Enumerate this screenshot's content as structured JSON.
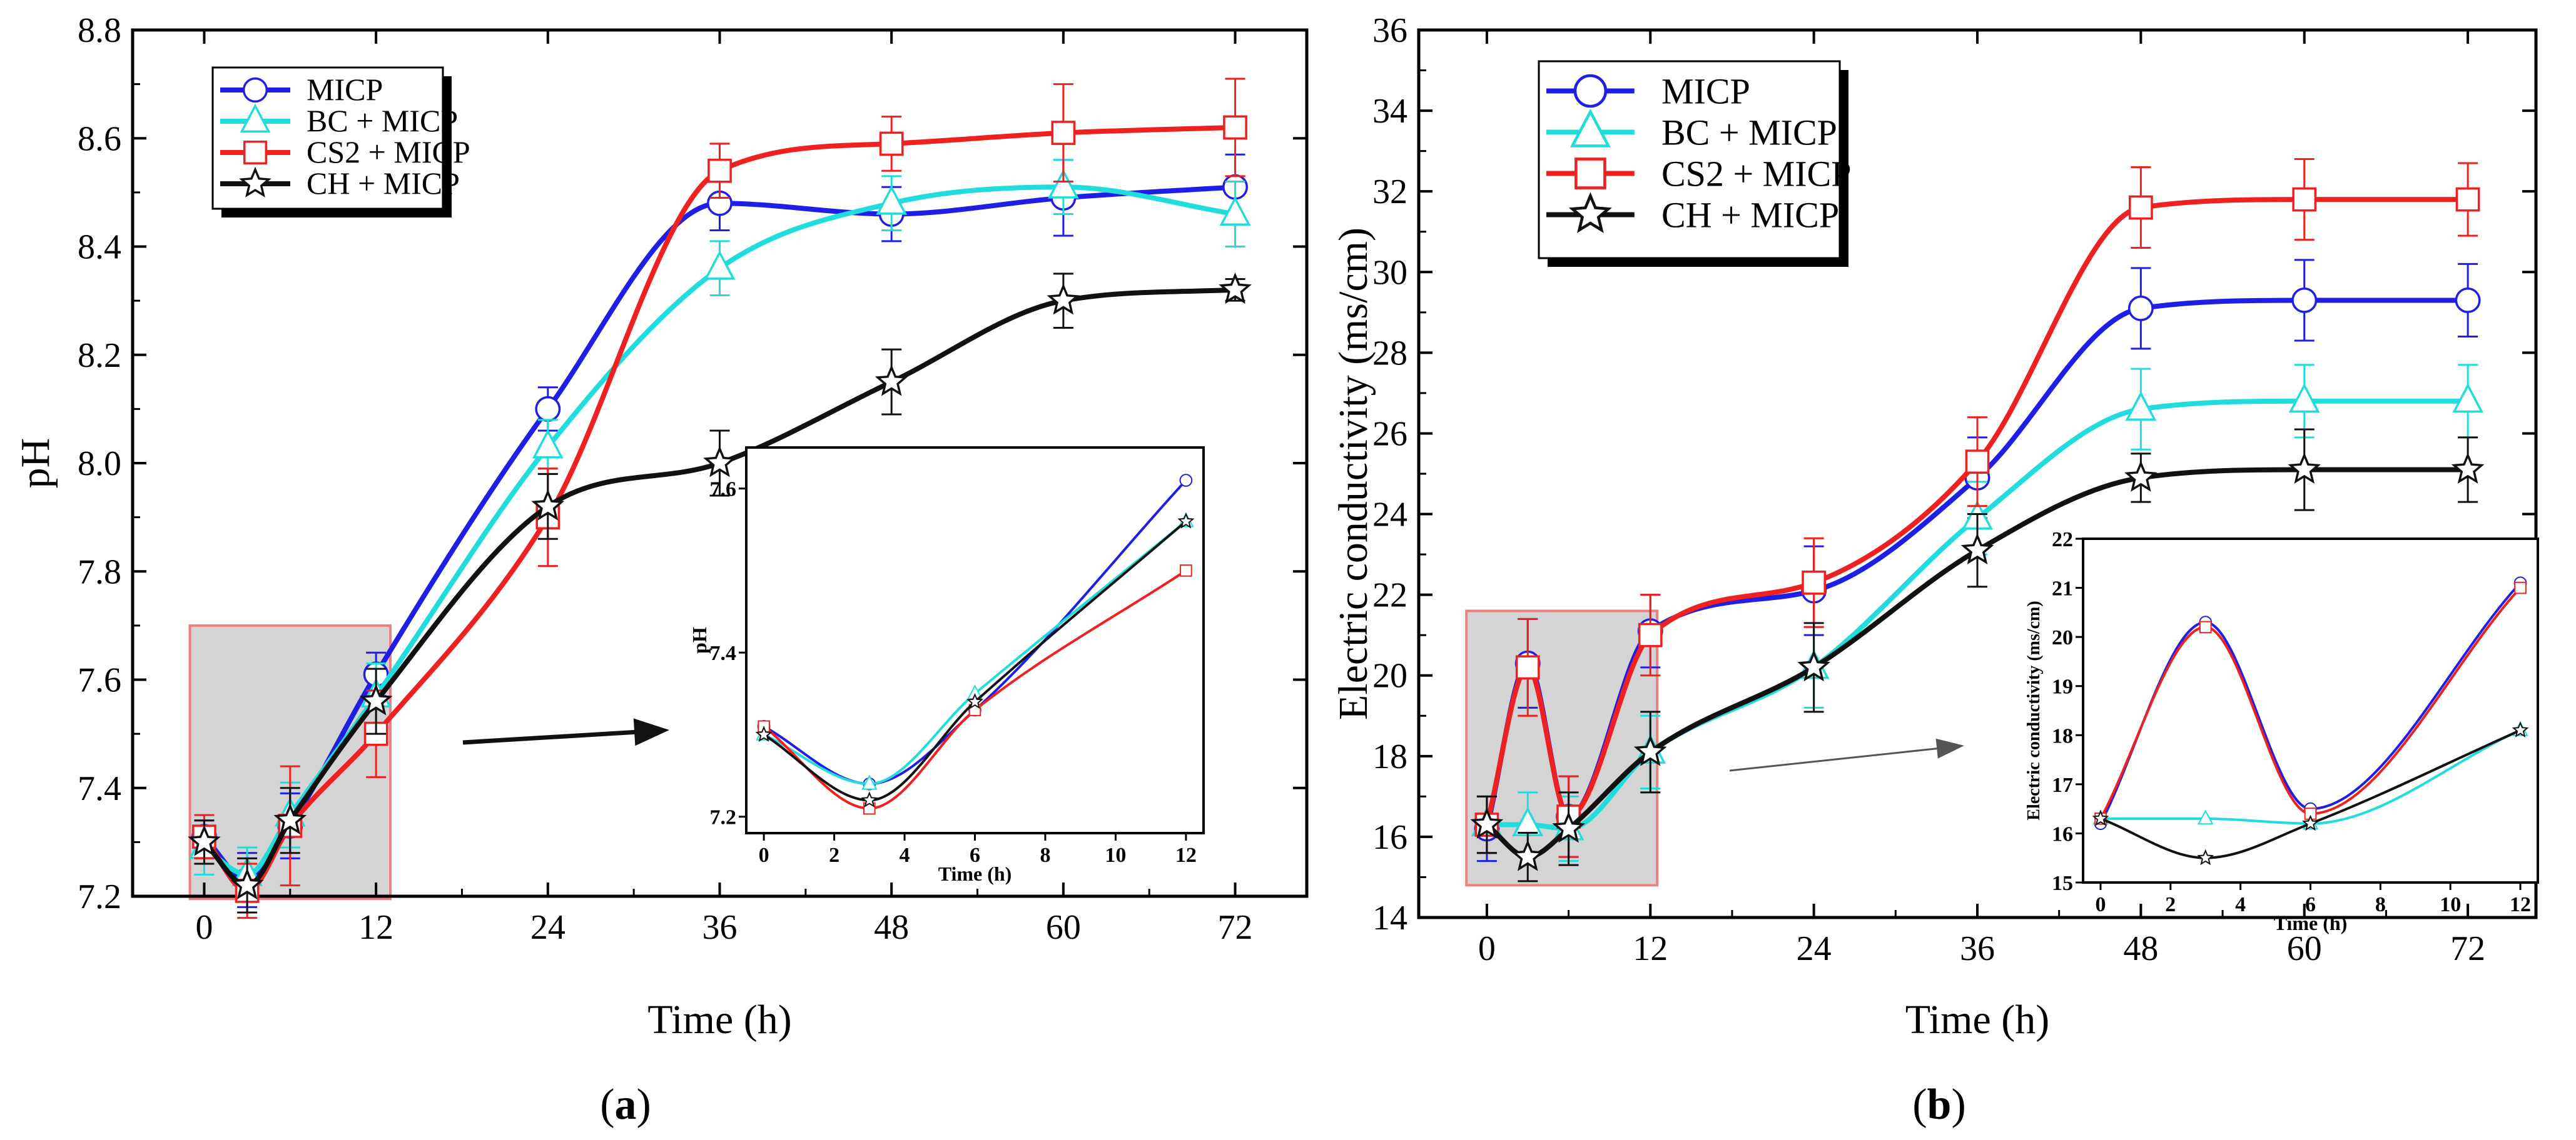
{
  "chart_data": [
    {
      "type": "line",
      "panel_label": "(a)",
      "panel_letter": "a",
      "xlabel": "Time (h)",
      "ylabel": "pH",
      "xlim": [
        -5,
        77
      ],
      "ylim": [
        7.2,
        8.8
      ],
      "xticks": [
        0,
        12,
        24,
        36,
        48,
        60,
        72
      ],
      "yticks": [
        "7.2",
        "7.4",
        "7.6",
        "7.8",
        "8.0",
        "8.2",
        "8.4",
        "8.6",
        "8.8"
      ],
      "legend_position": "top-left",
      "zoom_box": {
        "x": [
          -1,
          13
        ],
        "y": [
          7.195,
          7.7
        ]
      },
      "series": [
        {
          "name": "MICP",
          "color": "#1e1ee6",
          "marker": "circle",
          "x": [
            0,
            3,
            6,
            12,
            24,
            36,
            48,
            60,
            72
          ],
          "y": [
            7.31,
            7.23,
            7.33,
            7.61,
            8.1,
            8.48,
            8.46,
            8.49,
            8.51
          ],
          "err": [
            0.03,
            0.05,
            0.06,
            0.04,
            0.04,
            0.05,
            0.05,
            0.07,
            0.06
          ]
        },
        {
          "name": "BC + MICP",
          "color": "#20dcdc",
          "marker": "triangle",
          "x": [
            0,
            3,
            6,
            12,
            24,
            36,
            48,
            60,
            72
          ],
          "y": [
            7.29,
            7.24,
            7.35,
            7.57,
            8.03,
            8.36,
            8.48,
            8.51,
            8.46
          ],
          "err": [
            0.05,
            0.05,
            0.06,
            0.06,
            0.05,
            0.05,
            0.05,
            0.05,
            0.06
          ]
        },
        {
          "name": "CS2 + MICP",
          "color": "#ee2020",
          "marker": "square",
          "x": [
            0,
            3,
            6,
            12,
            24,
            36,
            48,
            60,
            72
          ],
          "y": [
            7.31,
            7.21,
            7.33,
            7.5,
            7.9,
            8.54,
            8.59,
            8.61,
            8.62
          ],
          "err": [
            0.04,
            0.05,
            0.11,
            0.08,
            0.09,
            0.05,
            0.05,
            0.09,
            0.09
          ]
        },
        {
          "name": "CH + MICP",
          "color": "#111111",
          "marker": "star",
          "x": [
            0,
            3,
            6,
            12,
            24,
            36,
            48,
            60,
            72
          ],
          "y": [
            7.3,
            7.22,
            7.34,
            7.56,
            7.92,
            8.0,
            8.15,
            8.3,
            8.32
          ],
          "err": [
            0.04,
            0.05,
            0.06,
            0.06,
            0.06,
            0.06,
            0.06,
            0.05,
            0.02
          ]
        }
      ],
      "inset": {
        "xlabel": "Time (h)",
        "ylabel": "pH",
        "xlim": [
          -0.5,
          12.5
        ],
        "ylim": [
          7.18,
          7.65
        ],
        "xticks": [
          0,
          2,
          4,
          6,
          8,
          10,
          12
        ],
        "yticks": [
          "7.2",
          "7.4",
          "7.6"
        ],
        "series_y": [
          [
            7.31,
            7.24,
            7.33,
            7.61
          ],
          [
            7.3,
            7.24,
            7.35,
            7.56
          ],
          [
            7.31,
            7.21,
            7.33,
            7.5
          ],
          [
            7.3,
            7.22,
            7.34,
            7.56
          ]
        ],
        "x": [
          0,
          3,
          6,
          12
        ]
      }
    },
    {
      "type": "line",
      "panel_label": "(b)",
      "panel_letter": "b",
      "xlabel": "Time (h)",
      "ylabel": "Electric conductivity (ms/cm)",
      "xlim": [
        -5,
        77
      ],
      "ylim": [
        14,
        36
      ],
      "xticks": [
        0,
        12,
        24,
        36,
        48,
        60,
        72
      ],
      "yticks": [
        "14",
        "16",
        "18",
        "20",
        "22",
        "24",
        "26",
        "28",
        "30",
        "32",
        "34",
        "36"
      ],
      "legend_position": "top-left",
      "zoom_box": {
        "x": [
          -1.5,
          12.5
        ],
        "y": [
          14.8,
          21.6
        ]
      },
      "series": [
        {
          "name": "MICP",
          "color": "#1e1ee6",
          "marker": "circle",
          "x": [
            0,
            3,
            6,
            12,
            24,
            36,
            48,
            60,
            72
          ],
          "y": [
            16.2,
            20.3,
            16.5,
            21.1,
            22.1,
            24.9,
            29.1,
            29.3,
            29.3
          ],
          "err": [
            0.8,
            1.1,
            1.0,
            0.9,
            1.1,
            1.0,
            1.0,
            1.0,
            0.9
          ]
        },
        {
          "name": "BC + MICP",
          "color": "#20dcdc",
          "marker": "triangle",
          "x": [
            0,
            3,
            6,
            12,
            24,
            36,
            48,
            60,
            72
          ],
          "y": [
            16.3,
            16.3,
            16.2,
            18.1,
            20.2,
            23.9,
            26.6,
            26.8,
            26.8
          ],
          "err": [
            0.7,
            0.8,
            0.8,
            0.9,
            1.0,
            0.9,
            1.0,
            0.9,
            0.9
          ]
        },
        {
          "name": "CS2 + MICP",
          "color": "#ee2020",
          "marker": "square",
          "x": [
            0,
            3,
            6,
            12,
            24,
            36,
            48,
            60,
            72
          ],
          "y": [
            16.3,
            20.2,
            16.5,
            21.0,
            22.3,
            25.3,
            31.6,
            31.8,
            31.8
          ],
          "err": [
            0.7,
            1.2,
            1.0,
            1.0,
            1.1,
            1.1,
            1.0,
            1.0,
            0.9
          ]
        },
        {
          "name": "CH + MICP",
          "color": "#111111",
          "marker": "star",
          "x": [
            0,
            3,
            6,
            12,
            24,
            36,
            48,
            60,
            72
          ],
          "y": [
            16.3,
            15.5,
            16.2,
            18.1,
            20.2,
            23.1,
            24.9,
            25.1,
            25.1
          ],
          "err": [
            0.7,
            0.6,
            0.9,
            1.0,
            1.1,
            0.9,
            0.6,
            1.0,
            0.8
          ]
        }
      ],
      "inset": {
        "xlabel": "Time (h)",
        "ylabel": "Electric conductivity (ms/cm)",
        "xlim": [
          -0.5,
          12.5
        ],
        "ylim": [
          15,
          22
        ],
        "xticks": [
          0,
          2,
          4,
          6,
          8,
          10,
          12
        ],
        "yticks": [
          "15",
          "16",
          "17",
          "18",
          "19",
          "20",
          "21",
          "22"
        ],
        "series_y": [
          [
            16.2,
            20.3,
            16.5,
            21.1
          ],
          [
            16.3,
            16.3,
            16.2,
            18.1
          ],
          [
            16.3,
            20.2,
            16.4,
            21.0
          ],
          [
            16.3,
            15.5,
            16.2,
            18.1
          ]
        ],
        "x": [
          0,
          3,
          6,
          12
        ]
      }
    }
  ]
}
